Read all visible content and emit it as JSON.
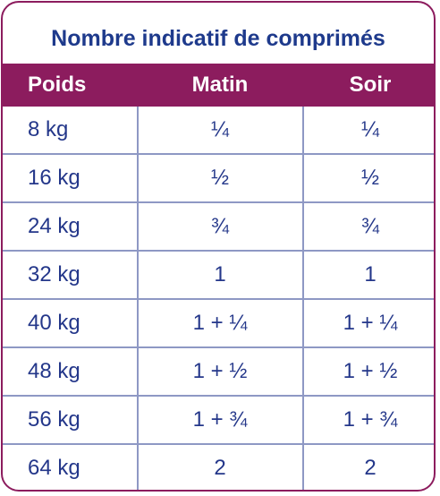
{
  "title": "Nombre indicatif de comprimés",
  "table": {
    "header": [
      "Poids",
      "Matin",
      "Soir"
    ],
    "rows": [
      [
        "8 kg",
        "¼",
        "¼"
      ],
      [
        "16 kg",
        "½",
        "½"
      ],
      [
        "24 kg",
        "¾",
        "¾"
      ],
      [
        "32 kg",
        "1",
        "1"
      ],
      [
        "40 kg",
        "1 + ¼",
        "1 + ¼"
      ],
      [
        "48 kg",
        "1 + ½",
        "1 + ½"
      ],
      [
        "56 kg",
        "1 + ¾",
        "1 + ¾"
      ],
      [
        "64 kg",
        "2",
        "2"
      ]
    ]
  }
}
